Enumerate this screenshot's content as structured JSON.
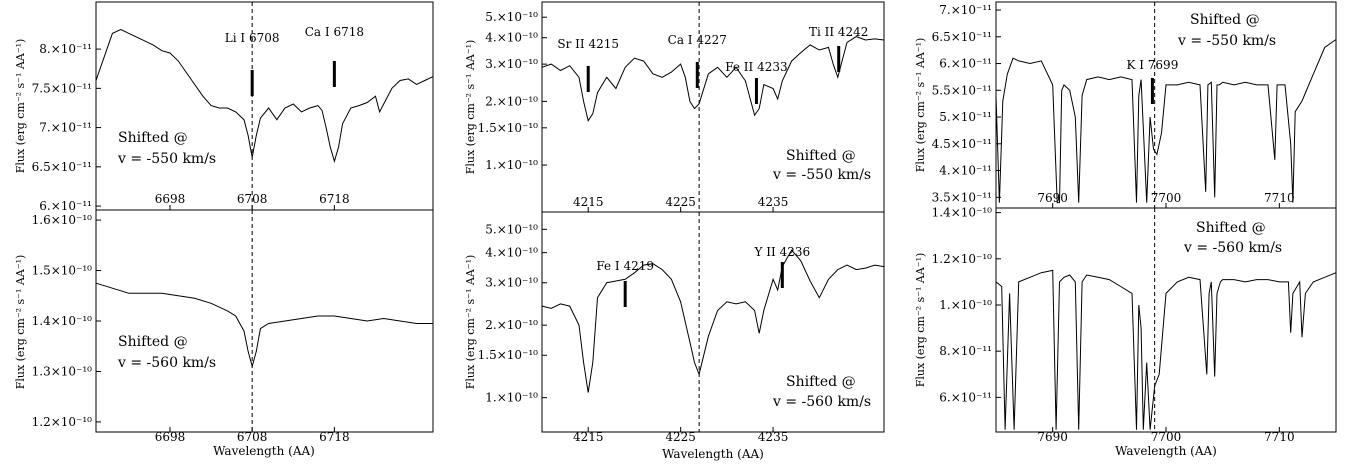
{
  "chart_data": [
    {
      "type": "line",
      "ylabel": "Flux (erg cm⁻² s⁻¹ AA⁻¹)",
      "xlabel": "",
      "xlim": [
        6689,
        6730
      ],
      "ylim": [
        5.95e-11,
        8.6e-11
      ],
      "yticks": [
        "6.×10⁻¹¹",
        "6.5×10⁻¹¹",
        "7.×10⁻¹¹",
        "7.5×10⁻¹¹",
        "8.×10⁻¹¹"
      ],
      "ytick_values": [
        6e-11,
        6.5e-11,
        7e-11,
        7.5e-11,
        8e-11
      ],
      "xticks": [
        "6698",
        "6708",
        "6718"
      ],
      "xtick_values": [
        6698,
        6708,
        6718
      ],
      "vline": 6708,
      "shift_text": [
        "Shifted @",
        "v = -550 km/s"
      ],
      "shift_pos": "middle-left",
      "line_markers": [
        {
          "label": "Li I 6708",
          "x": 6708
        },
        {
          "label": "Ca I 6718",
          "x": 6718
        }
      ],
      "series": [
        {
          "x": [
            6689,
            6690,
            6691,
            6692,
            6693,
            6694,
            6695,
            6696,
            6697,
            6698,
            6699,
            6700,
            6701,
            6702,
            6703,
            6704,
            6705,
            6706,
            6707,
            6707.5,
            6708,
            6708.5,
            6709,
            6710,
            6711,
            6712,
            6713,
            6714,
            6715,
            6716,
            6716.5,
            6717,
            6717.5,
            6718,
            6718.5,
            6719,
            6720,
            6721,
            6722,
            6723,
            6723.5,
            6724,
            6725,
            6726,
            6727,
            6728,
            6729,
            6730
          ],
          "y": [
            7.6e-11,
            7.9e-11,
            8.2e-11,
            8.25e-11,
            8.2e-11,
            8.15e-11,
            8.1e-11,
            8.05e-11,
            7.98e-11,
            7.95e-11,
            7.85e-11,
            7.7e-11,
            7.55e-11,
            7.4e-11,
            7.28e-11,
            7.25e-11,
            7.25e-11,
            7.2e-11,
            7.1e-11,
            6.9e-11,
            6.62e-11,
            6.9e-11,
            7.12e-11,
            7.25e-11,
            7.1e-11,
            7.25e-11,
            7.3e-11,
            7.2e-11,
            7.25e-11,
            7.28e-11,
            7.22e-11,
            7e-11,
            6.75e-11,
            6.57e-11,
            6.75e-11,
            7.05e-11,
            7.25e-11,
            7.28e-11,
            7.32e-11,
            7.4e-11,
            7.2e-11,
            7.3e-11,
            7.5e-11,
            7.6e-11,
            7.62e-11,
            7.55e-11,
            7.6e-11,
            7.65e-11
          ]
        }
      ]
    },
    {
      "type": "line",
      "ylabel": "Flux (erg cm⁻² s⁻¹ AA⁻¹)",
      "xlabel": "Wavelength (AA)",
      "xlim": [
        6689,
        6730
      ],
      "ylim": [
        1.18e-10,
        1.62e-10
      ],
      "yticks": [
        "1.2×10⁻¹⁰",
        "1.3×10⁻¹⁰",
        "1.4×10⁻¹⁰",
        "1.5×10⁻¹⁰",
        "1.6×10⁻¹⁰"
      ],
      "ytick_values": [
        1.2e-10,
        1.3e-10,
        1.4e-10,
        1.5e-10,
        1.6e-10
      ],
      "xticks": [
        "6698",
        "6708",
        "6718"
      ],
      "xtick_values": [
        6698,
        6708,
        6718
      ],
      "vline": 6708,
      "shift_text": [
        "Shifted @",
        "v = -560 km/s"
      ],
      "shift_pos": "middle-left",
      "line_markers": [],
      "series": [
        {
          "x": [
            6689,
            6691,
            6693,
            6695,
            6697,
            6699,
            6701,
            6703,
            6705,
            6706,
            6707,
            6707.5,
            6708,
            6708.5,
            6709,
            6710,
            6712,
            6714,
            6716,
            6718,
            6720,
            6722,
            6724,
            6726,
            6728,
            6730
          ],
          "y": [
            1.475e-10,
            1.465e-10,
            1.455e-10,
            1.455e-10,
            1.455e-10,
            1.45e-10,
            1.445e-10,
            1.435e-10,
            1.42e-10,
            1.41e-10,
            1.38e-10,
            1.34e-10,
            1.31e-10,
            1.34e-10,
            1.385e-10,
            1.395e-10,
            1.4e-10,
            1.405e-10,
            1.41e-10,
            1.41e-10,
            1.405e-10,
            1.4e-10,
            1.405e-10,
            1.4e-10,
            1.395e-10,
            1.395e-10
          ]
        }
      ]
    },
    {
      "type": "line",
      "ylabel": "Flux (erg cm⁻² s⁻¹ AA⁻¹)",
      "xlabel": "",
      "xlim": [
        4210,
        4247
      ],
      "ylim": [
        6e-11,
        5.9e-10
      ],
      "yscale": "log",
      "yticks": [
        "1.×10⁻¹⁰",
        "1.5×10⁻¹⁰",
        "2.×10⁻¹⁰",
        "3.×10⁻¹⁰",
        "4.×10⁻¹⁰",
        "5.×10⁻¹⁰"
      ],
      "ytick_values": [
        1e-10,
        1.5e-10,
        2e-10,
        3e-10,
        4e-10,
        5e-10
      ],
      "xticks": [
        "4215",
        "4225",
        "4235"
      ],
      "xtick_values": [
        4215,
        4225,
        4235
      ],
      "vline": 4227,
      "shift_text": [
        "Shifted @",
        "v = -550 km/s"
      ],
      "shift_pos": "lower-right",
      "line_markers": [
        {
          "label": "Sr II 4215",
          "x": 4215
        },
        {
          "label": "Ca I 4227",
          "x": 4226.8
        },
        {
          "label": "Fe II 4233",
          "x": 4233.2
        },
        {
          "label": "Ti II 4242",
          "x": 4242.1
        }
      ],
      "series": [
        {
          "x": [
            4210,
            4211,
            4212,
            4213,
            4214,
            4214.5,
            4215,
            4215.5,
            4216,
            4217,
            4218,
            4219,
            4220,
            4221,
            4222,
            4223,
            4224,
            4225,
            4225.5,
            4226,
            4226.5,
            4227,
            4228,
            4229,
            4230,
            4231,
            4232,
            4233,
            4233.5,
            4234,
            4235,
            4235.5,
            4236,
            4237,
            4238,
            4239,
            4240,
            4241,
            4241.5,
            4242,
            4243,
            4244,
            4245,
            4246,
            4247
          ],
          "y": [
            2.9e-10,
            3e-10,
            2.8e-10,
            2.95e-10,
            2.6e-10,
            2e-10,
            1.62e-10,
            1.75e-10,
            2.2e-10,
            2.6e-10,
            2.3e-10,
            2.9e-10,
            3.2e-10,
            3.1e-10,
            2.7e-10,
            2.6e-10,
            2.75e-10,
            3e-10,
            2.6e-10,
            2e-10,
            1.85e-10,
            1.95e-10,
            2.7e-10,
            2.9e-10,
            2.6e-10,
            2.9e-10,
            2.5e-10,
            1.72e-10,
            1.85e-10,
            2.4e-10,
            2.3e-10,
            2.05e-10,
            2.5e-10,
            3.1e-10,
            3.4e-10,
            3.7e-10,
            3.5e-10,
            3.6e-10,
            3e-10,
            2.6e-10,
            3.8e-10,
            4.05e-10,
            3.9e-10,
            3.95e-10,
            3.9e-10
          ]
        }
      ]
    },
    {
      "type": "line",
      "ylabel": "Flux (erg cm⁻² s⁻¹ AA⁻¹)",
      "xlabel": "Wavelength (AA)",
      "xlim": [
        4210,
        4247
      ],
      "ylim": [
        7.2e-11,
        5.9e-10
      ],
      "yscale": "log",
      "yticks": [
        "1.×10⁻¹⁰",
        "1.5×10⁻¹⁰",
        "2.×10⁻¹⁰",
        "3.×10⁻¹⁰",
        "4.×10⁻¹⁰",
        "5.×10⁻¹⁰"
      ],
      "ytick_values": [
        1e-10,
        1.5e-10,
        2e-10,
        3e-10,
        4e-10,
        5e-10
      ],
      "xticks": [
        "4215",
        "4225",
        "4235"
      ],
      "xtick_values": [
        4215,
        4225,
        4235
      ],
      "vline": 4227,
      "shift_text": [
        "Shifted @",
        "v = -560 km/s"
      ],
      "shift_pos": "lower-right",
      "line_markers": [
        {
          "label": "Fe I 4219",
          "x": 4219
        },
        {
          "label": "Y II 4236",
          "x": 4236
        }
      ],
      "series": [
        {
          "x": [
            4210,
            4211,
            4212,
            4213,
            4214,
            4214.5,
            4215,
            4215.5,
            4216,
            4217,
            4218,
            4219,
            4220,
            4221,
            4222,
            4223,
            4224,
            4225,
            4226,
            4226.5,
            4227,
            4228,
            4229,
            4230,
            4231,
            4232,
            4233,
            4233.5,
            4234,
            4235,
            4235.5,
            4236,
            4237,
            4238,
            4239,
            4240,
            4241,
            4242,
            4243,
            4244,
            4245,
            4246,
            4247
          ],
          "y": [
            2.4e-10,
            2.35e-10,
            2.45e-10,
            2.4e-10,
            2e-10,
            1.4e-10,
            1.05e-10,
            1.4e-10,
            2.6e-10,
            3e-10,
            3.05e-10,
            3.1e-10,
            3.3e-10,
            3.55e-10,
            3.6e-10,
            3.4e-10,
            3.1e-10,
            2.5e-10,
            1.7e-10,
            1.4e-10,
            1.25e-10,
            1.8e-10,
            2.3e-10,
            2.5e-10,
            2.45e-10,
            2.5e-10,
            2.3e-10,
            1.85e-10,
            2.3e-10,
            3.1e-10,
            2.8e-10,
            3.5e-10,
            4.1e-10,
            3.7e-10,
            3.05e-10,
            2.6e-10,
            3.1e-10,
            3.4e-10,
            3.55e-10,
            3.4e-10,
            3.45e-10,
            3.55e-10,
            3.5e-10
          ]
        }
      ]
    },
    {
      "type": "line",
      "ylabel": "Flux (erg cm⁻² s⁻¹ AA⁻¹)",
      "xlabel": "",
      "xlim": [
        7685,
        7715
      ],
      "ylim": [
        3.3e-11,
        7.15e-11
      ],
      "yticks": [
        "3.5×10⁻¹¹",
        "4.×10⁻¹¹",
        "4.5×10⁻¹¹",
        "5.×10⁻¹¹",
        "5.5×10⁻¹¹",
        "6.×10⁻¹¹",
        "6.5×10⁻¹¹",
        "7.×10⁻¹¹"
      ],
      "ytick_values": [
        3.5e-11,
        4e-11,
        4.5e-11,
        5e-11,
        5.5e-11,
        6e-11,
        6.5e-11,
        7e-11
      ],
      "xticks": [
        "7690",
        "7700",
        "7710"
      ],
      "xtick_values": [
        7690,
        7700,
        7710
      ],
      "vline": 7699,
      "shift_text": [
        "Shifted @",
        "v = -550 km/s"
      ],
      "shift_pos": "top-right",
      "line_markers": [
        {
          "label": "K I 7699",
          "x": 7698.8
        }
      ],
      "series": [
        {
          "x": [
            7685,
            7685.3,
            7685.6,
            7686,
            7686.5,
            7687,
            7688,
            7689,
            7690,
            7690.4,
            7690.6,
            7690.8,
            7691,
            7691.5,
            7692,
            7692.3,
            7692.6,
            7693,
            7694,
            7695,
            7696,
            7697,
            7697.4,
            7697.6,
            7697.8,
            7698,
            7698.3,
            7698.6,
            7698.9,
            7699.2,
            7699.6,
            7700,
            7701,
            7702,
            7703,
            7703.5,
            7703.7,
            7704,
            7704.3,
            7704.5,
            7704.7,
            7705,
            7706,
            7707,
            7708,
            7709,
            7709.6,
            7709.8,
            7710,
            7710.5,
            7711,
            7711.2,
            7711.4,
            7712,
            7713,
            7714,
            7715
          ],
          "y": [
            5.4e-11,
            3.4e-11,
            5.3e-11,
            5.8e-11,
            6.1e-11,
            6.05e-11,
            6e-11,
            6.05e-11,
            5.6e-11,
            3.4e-11,
            3.4e-11,
            5.5e-11,
            5.6e-11,
            5.5e-11,
            5e-11,
            3.4e-11,
            5.4e-11,
            5.7e-11,
            5.75e-11,
            5.7e-11,
            5.75e-11,
            5.7e-11,
            3.4e-11,
            5.4e-11,
            5.7e-11,
            4.8e-11,
            3.4e-11,
            5e-11,
            4.4e-11,
            4.3e-11,
            4.7e-11,
            5.6e-11,
            5.6e-11,
            5.65e-11,
            5.6e-11,
            3.6e-11,
            5.6e-11,
            5.65e-11,
            3.5e-11,
            5.6e-11,
            5.6e-11,
            5.65e-11,
            5.6e-11,
            5.65e-11,
            5.6e-11,
            5.6e-11,
            4.2e-11,
            5.6e-11,
            5.6e-11,
            5.6e-11,
            4.5e-11,
            3.4e-11,
            5.1e-11,
            5.3e-11,
            5.8e-11,
            6.3e-11,
            6.45e-11
          ]
        }
      ]
    },
    {
      "type": "line",
      "ylabel": "Flux (erg cm⁻² s⁻¹ AA⁻¹)",
      "xlabel": "Wavelength (AA)",
      "xlim": [
        7685,
        7715
      ],
      "ylim": [
        4.5e-11,
        1.42e-10
      ],
      "yticks": [
        "6.×10⁻¹¹",
        "8.×10⁻¹¹",
        "1.×10⁻¹⁰",
        "1.2×10⁻¹⁰",
        "1.4×10⁻¹⁰"
      ],
      "ytick_values": [
        6e-11,
        8e-11,
        1e-10,
        1.2e-10,
        1.4e-10
      ],
      "xticks": [
        "7690",
        "7700",
        "7710"
      ],
      "xtick_values": [
        7690,
        7700,
        7710
      ],
      "vline": 7699,
      "shift_text": [
        "Shifted @",
        "v = -560 km/s"
      ],
      "shift_pos": "top-right",
      "line_markers": [],
      "series": [
        {
          "x": [
            7685,
            7685.5,
            7685.8,
            7686.2,
            7686.6,
            7687,
            7688,
            7689,
            7690,
            7690.3,
            7690.6,
            7691,
            7691.5,
            7692,
            7692.3,
            7692.6,
            7693,
            7694,
            7695,
            7696,
            7697,
            7697.4,
            7697.6,
            7697.8,
            7698,
            7698.3,
            7698.6,
            7699,
            7699.4,
            7700,
            7701,
            7702,
            7703,
            7703.6,
            7703.8,
            7704,
            7704.3,
            7704.5,
            7704.8,
            7705,
            7706,
            7707,
            7708,
            7709,
            7710,
            7710.8,
            7711,
            7711.2,
            7711.8,
            7712,
            7712.3,
            7713,
            7714,
            7715
          ],
          "y": [
            1.1e-10,
            1.08e-10,
            4.6e-11,
            1.05e-10,
            4.6e-11,
            1.1e-10,
            1.12e-10,
            1.14e-10,
            1.15e-10,
            4.6e-11,
            1.1e-10,
            1.12e-10,
            1.13e-10,
            1.1e-10,
            4.6e-11,
            1.1e-10,
            1.13e-10,
            1.12e-10,
            1.11e-10,
            1.08e-10,
            1.05e-10,
            4.6e-11,
            1e-10,
            9e-11,
            4.6e-11,
            7.5e-11,
            4.6e-11,
            6.5e-11,
            7e-11,
            1.05e-10,
            1.1e-10,
            1.12e-10,
            1.11e-10,
            7e-11,
            1.05e-10,
            1.1e-10,
            6.9e-11,
            1.05e-10,
            1.1e-10,
            1.11e-10,
            1.11e-10,
            1.1e-10,
            1.11e-10,
            1.11e-10,
            1.1e-10,
            1.1e-10,
            8.8e-11,
            1.05e-10,
            1.1e-10,
            8.6e-11,
            1.05e-10,
            1.1e-10,
            1.12e-10,
            1.14e-10
          ]
        }
      ]
    }
  ]
}
